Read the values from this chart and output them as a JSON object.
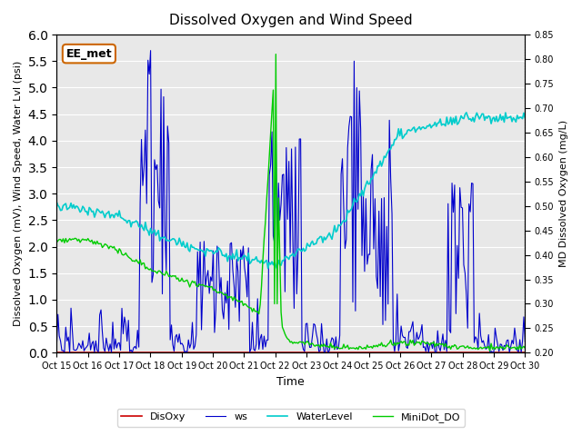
{
  "title": "Dissolved Oxygen and Wind Speed",
  "ylabel_left": "Dissolved Oxygen (mV), Wind Speed, Water Lvl (psi)",
  "ylabel_right": "MD Dissolved Oxygen (mg/L)",
  "xlabel": "Time",
  "annotation": "EE_met",
  "ylim_left": [
    0.0,
    6.0
  ],
  "ylim_right": [
    0.2,
    0.85
  ],
  "yticks_left": [
    0.0,
    0.5,
    1.0,
    1.5,
    2.0,
    2.5,
    3.0,
    3.5,
    4.0,
    4.5,
    5.0,
    5.5,
    6.0
  ],
  "yticks_right": [
    0.2,
    0.25,
    0.3,
    0.35,
    0.4,
    0.45,
    0.5,
    0.55,
    0.6,
    0.65,
    0.7,
    0.75,
    0.8,
    0.85
  ],
  "xtick_labels": [
    "Oct 15",
    "Oct 16",
    "Oct 17",
    "Oct 18",
    "Oct 19",
    "Oct 20",
    "Oct 21",
    "Oct 22",
    "Oct 23",
    "Oct 24",
    "Oct 25",
    "Oct 26",
    "Oct 27",
    "Oct 28",
    "Oct 29",
    "Oct 30"
  ],
  "legend_labels": [
    "DisOxy",
    "ws",
    "WaterLevel",
    "MiniDot_DO"
  ],
  "colors": {
    "DisOxy": "#cc0000",
    "ws": "#0000cc",
    "WaterLevel": "#00cccc",
    "MiniDot_DO": "#00cc00"
  },
  "background_color": "#e8e8e8",
  "grid_color": "#ffffff"
}
